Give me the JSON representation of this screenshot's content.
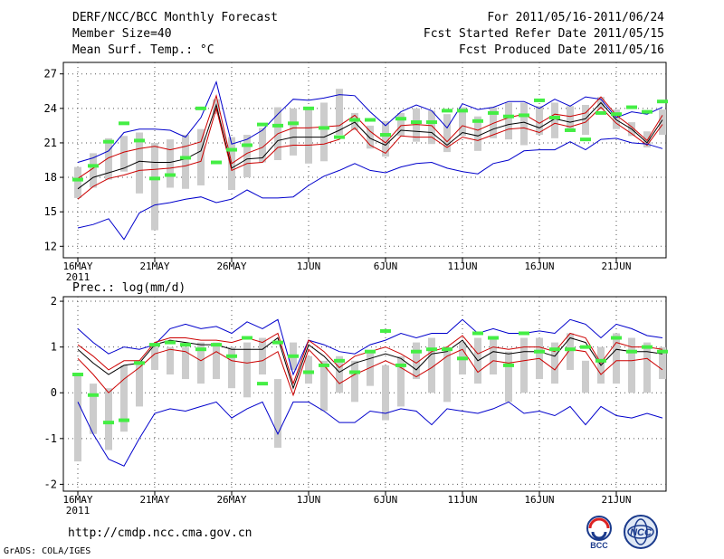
{
  "header": {
    "title": "DERF/NCC/BCC Monthly Forecast",
    "member_size": "Member Size=40",
    "top_variable": "Mean Surf. Temp.: °C",
    "period": "For 2011/05/16-2011/06/24",
    "started": "Fcst Started Refer Date 2011/05/15",
    "produced": "Fcst Produced Date 2011/05/16"
  },
  "footer": {
    "url": "http://cmdp.ncc.cma.gov.cn",
    "credit": "GrADS: COLA/IGES",
    "logo_left": "BCC",
    "logo_right": "NCC"
  },
  "colors": {
    "box": "#cccccc",
    "mean": "#000000",
    "spread": "#cc0000",
    "extreme": "#0000cc",
    "obs": "#44ee44"
  },
  "chart_data": [
    {
      "type": "line",
      "title": "Mean Surf. Temp.: °C",
      "x_ticks": [
        "16MAY",
        "21MAY",
        "26MAY",
        "1JUN",
        "6JUN",
        "11JUN",
        "16JUN",
        "21JUN"
      ],
      "x_year_label": "2011",
      "days": 39,
      "ylim": [
        11,
        28
      ],
      "yticks": [
        12,
        15,
        18,
        21,
        24,
        27
      ],
      "series": [
        {
          "name": "max",
          "color": "extreme",
          "values": [
            19.3,
            19.7,
            20.3,
            21.9,
            22.2,
            22.2,
            22.1,
            21.5,
            23.2,
            26.3,
            20.9,
            21.3,
            22.1,
            23.5,
            24.8,
            24.7,
            24.9,
            25.2,
            25.1,
            23.7,
            22.5,
            23.7,
            24.3,
            23.8,
            22.3,
            24.4,
            23.9,
            24.1,
            24.6,
            24.6,
            24.0,
            24.8,
            24.2,
            25.0,
            24.8,
            23.2,
            23.7,
            23.5,
            24.1
          ]
        },
        {
          "name": "upper",
          "color": "spread",
          "values": [
            17.9,
            18.8,
            19.7,
            20.2,
            20.5,
            20.7,
            20.4,
            20.7,
            21.1,
            25.1,
            19.2,
            20.1,
            20.6,
            21.8,
            22.3,
            22.3,
            22.4,
            22.5,
            23.4,
            22.0,
            21.0,
            22.5,
            22.6,
            22.5,
            21.1,
            22.5,
            22.1,
            22.7,
            23.2,
            23.5,
            22.7,
            23.5,
            23.3,
            23.6,
            25.0,
            23.4,
            22.4,
            21.2,
            23.4
          ]
        },
        {
          "name": "mean",
          "color": "mean",
          "values": [
            17.0,
            18.0,
            18.4,
            18.8,
            19.4,
            19.3,
            19.3,
            19.6,
            20.3,
            24.3,
            18.8,
            19.6,
            19.7,
            21.2,
            21.5,
            21.5,
            21.5,
            22.1,
            22.8,
            21.4,
            20.8,
            22.1,
            22.0,
            21.9,
            20.8,
            21.9,
            21.6,
            22.2,
            22.6,
            22.8,
            22.3,
            23.1,
            22.8,
            23.1,
            24.5,
            23.0,
            22.2,
            21.0,
            23.0
          ]
        },
        {
          "name": "lower",
          "color": "spread",
          "values": [
            16.1,
            17.2,
            17.9,
            18.2,
            18.6,
            18.7,
            18.8,
            19.0,
            19.4,
            24.0,
            18.6,
            19.2,
            19.3,
            20.6,
            20.8,
            20.8,
            20.9,
            21.3,
            22.3,
            20.8,
            20.1,
            21.6,
            21.5,
            21.5,
            20.6,
            21.5,
            21.2,
            21.7,
            22.2,
            22.3,
            21.9,
            22.7,
            22.4,
            22.8,
            24.1,
            22.7,
            21.8,
            20.8,
            22.6
          ]
        },
        {
          "name": "min",
          "color": "extreme",
          "values": [
            13.6,
            13.9,
            14.4,
            12.6,
            14.9,
            15.6,
            15.8,
            16.1,
            16.3,
            15.8,
            16.1,
            16.9,
            16.2,
            16.2,
            16.3,
            17.3,
            18.1,
            18.6,
            19.2,
            18.6,
            18.4,
            18.9,
            19.2,
            19.3,
            18.8,
            18.5,
            18.3,
            19.2,
            19.5,
            20.3,
            20.4,
            20.4,
            21.1,
            20.4,
            21.3,
            21.4,
            21.0,
            20.9,
            20.5
          ]
        }
      ],
      "boxes": [
        [
          16.2,
          18.9
        ],
        [
          17.1,
          20.1
        ],
        [
          17.8,
          21.4
        ],
        [
          18.5,
          21.6
        ],
        [
          16.6,
          21.9
        ],
        [
          13.4,
          21.0
        ],
        [
          17.1,
          21.3
        ],
        [
          17.0,
          21.7
        ],
        [
          17.3,
          22.2
        ],
        [
          23.5,
          24.8
        ],
        [
          16.9,
          21.5
        ],
        [
          18.0,
          21.7
        ],
        [
          19.3,
          22.3
        ],
        [
          19.5,
          24.1
        ],
        [
          19.9,
          24.0
        ],
        [
          19.2,
          24.1
        ],
        [
          19.4,
          24.5
        ],
        [
          21.7,
          25.7
        ],
        [
          22.1,
          23.6
        ],
        [
          20.5,
          22.5
        ],
        [
          19.8,
          22.9
        ],
        [
          21.6,
          23.6
        ],
        [
          21.1,
          24.0
        ],
        [
          20.9,
          23.8
        ],
        [
          20.2,
          23.5
        ],
        [
          21.6,
          24.1
        ],
        [
          20.3,
          23.3
        ],
        [
          21.4,
          24.1
        ],
        [
          21.3,
          24.5
        ],
        [
          20.8,
          24.5
        ],
        [
          21.7,
          24.2
        ],
        [
          21.4,
          24.5
        ],
        [
          22.2,
          24.2
        ],
        [
          21.7,
          24.3
        ],
        [
          23.9,
          25.0
        ],
        [
          22.2,
          23.9
        ],
        [
          21.6,
          22.8
        ],
        [
          20.6,
          22.0
        ],
        [
          21.7,
          23.9
        ]
      ],
      "observed": [
        17.8,
        19.0,
        21.1,
        22.7,
        21.2,
        17.9,
        18.2,
        19.7,
        24.0,
        19.3,
        20.4,
        20.8,
        22.6,
        22.5,
        22.7,
        24.0,
        22.3,
        21.5,
        23.0,
        23.0,
        21.7,
        23.1,
        22.8,
        22.8,
        23.8,
        23.8,
        22.9,
        23.6,
        23.3,
        23.4,
        24.7,
        23.2,
        22.1,
        21.3,
        23.6,
        23.5,
        24.1,
        23.7,
        24.6
      ]
    },
    {
      "type": "line",
      "title": "Prec.: log(mm/d)",
      "x_ticks": [
        "16MAY",
        "21MAY",
        "26MAY",
        "1JUN",
        "6JUN",
        "11JUN",
        "16JUN",
        "21JUN"
      ],
      "x_year_label": "2011",
      "days": 39,
      "ylim": [
        -2.15,
        2.1
      ],
      "yticks": [
        -2,
        -1,
        0,
        1,
        2
      ],
      "series": [
        {
          "name": "max",
          "color": "extreme",
          "values": [
            1.4,
            1.1,
            0.85,
            1.0,
            0.95,
            1.05,
            1.4,
            1.5,
            1.4,
            1.45,
            1.3,
            1.55,
            1.4,
            1.6,
            0.4,
            1.15,
            1.05,
            0.9,
            0.85,
            1.05,
            1.15,
            1.3,
            1.2,
            1.3,
            1.3,
            1.6,
            1.3,
            1.4,
            1.3,
            1.3,
            1.35,
            1.3,
            1.6,
            1.5,
            1.2,
            1.5,
            1.4,
            1.25,
            1.2
          ]
        },
        {
          "name": "upper",
          "color": "spread",
          "values": [
            1.05,
            0.8,
            0.5,
            0.7,
            0.7,
            1.1,
            1.2,
            1.2,
            1.15,
            1.15,
            1.1,
            1.2,
            1.1,
            1.3,
            0.2,
            1.15,
            0.9,
            0.55,
            0.8,
            0.9,
            1.0,
            0.85,
            0.65,
            0.9,
            1.0,
            1.25,
            0.85,
            1.0,
            0.95,
            1.0,
            1.0,
            0.9,
            1.3,
            1.2,
            0.65,
            1.1,
            1.0,
            1.0,
            0.95
          ]
        },
        {
          "name": "mean",
          "color": "mean",
          "values": [
            0.95,
            0.65,
            0.4,
            0.6,
            0.65,
            1.05,
            1.15,
            1.1,
            1.05,
            1.05,
            0.95,
            0.95,
            0.95,
            1.2,
            0.1,
            1.05,
            0.8,
            0.45,
            0.65,
            0.75,
            0.85,
            0.75,
            0.5,
            0.85,
            0.9,
            1.15,
            0.7,
            0.9,
            0.85,
            0.9,
            0.9,
            0.8,
            1.2,
            1.1,
            0.6,
            0.95,
            0.9,
            0.9,
            0.85
          ]
        },
        {
          "name": "lower",
          "color": "spread",
          "values": [
            0.75,
            0.4,
            0.0,
            0.3,
            0.55,
            0.85,
            0.95,
            0.9,
            0.7,
            0.9,
            0.7,
            0.65,
            0.7,
            0.9,
            -0.05,
            0.95,
            0.6,
            0.2,
            0.4,
            0.55,
            0.7,
            0.55,
            0.35,
            0.55,
            0.8,
            0.95,
            0.45,
            0.7,
            0.65,
            0.7,
            0.75,
            0.5,
            0.95,
            0.9,
            0.4,
            0.7,
            0.7,
            0.75,
            0.5
          ]
        },
        {
          "name": "min",
          "color": "extreme",
          "values": [
            -0.2,
            -0.9,
            -1.45,
            -1.6,
            -1.0,
            -0.45,
            -0.35,
            -0.4,
            -0.3,
            -0.2,
            -0.55,
            -0.35,
            -0.2,
            -0.9,
            -0.2,
            -0.2,
            -0.4,
            -0.65,
            -0.65,
            -0.4,
            -0.45,
            -0.35,
            -0.4,
            -0.7,
            -0.35,
            -0.4,
            -0.45,
            -0.35,
            -0.2,
            -0.45,
            -0.4,
            -0.5,
            -0.3,
            -0.7,
            -0.3,
            -0.5,
            -0.55,
            -0.45,
            -0.55
          ]
        }
      ],
      "boxes": [
        [
          -1.5,
          0.4
        ],
        [
          -0.9,
          0.2
        ],
        [
          -1.25,
          0.1
        ],
        [
          -0.85,
          0.6
        ],
        [
          -0.3,
          0.7
        ],
        [
          0.5,
          1.0
        ],
        [
          0.4,
          1.0
        ],
        [
          0.3,
          1.0
        ],
        [
          0.2,
          1.1
        ],
        [
          0.3,
          1.1
        ],
        [
          0.1,
          1.0
        ],
        [
          -0.1,
          1.1
        ],
        [
          0.4,
          1.2
        ],
        [
          -1.2,
          0.3
        ],
        [
          0.5,
          1.1
        ],
        [
          0.2,
          0.8
        ],
        [
          -0.4,
          0.7
        ],
        [
          0.0,
          0.8
        ],
        [
          -0.2,
          0.7
        ],
        [
          0.15,
          0.9
        ],
        [
          -0.6,
          0.6
        ],
        [
          -0.3,
          0.8
        ],
        [
          0.3,
          1.1
        ],
        [
          0.0,
          1.2
        ],
        [
          -0.2,
          1.0
        ],
        [
          0.4,
          1.1
        ],
        [
          0.2,
          1.2
        ],
        [
          0.4,
          1.2
        ],
        [
          -0.2,
          0.9
        ],
        [
          0.0,
          1.2
        ],
        [
          0.3,
          1.2
        ],
        [
          0.2,
          1.1
        ],
        [
          0.5,
          1.3
        ],
        [
          0.0,
          0.7
        ],
        [
          0.2,
          1.0
        ],
        [
          0.2,
          1.3
        ],
        [
          0.0,
          1.2
        ],
        [
          0.0,
          1.1
        ],
        [
          0.3,
          1.0
        ]
      ],
      "observed": [
        0.4,
        -0.05,
        -0.65,
        -0.6,
        0.65,
        1.05,
        1.1,
        1.05,
        0.95,
        1.05,
        0.8,
        1.2,
        0.2,
        1.1,
        0.8,
        0.45,
        0.6,
        0.7,
        0.45,
        0.9,
        1.35,
        0.6,
        0.9,
        0.95,
        0.95,
        0.75,
        1.3,
        1.2,
        0.6,
        1.3,
        0.9,
        0.95,
        0.95,
        1.0,
        0.7,
        1.2,
        0.9,
        1.0,
        0.9
      ]
    }
  ]
}
